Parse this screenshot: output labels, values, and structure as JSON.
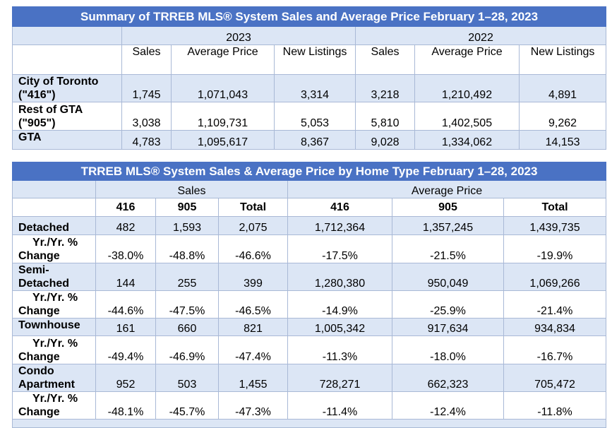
{
  "summary": {
    "title": "Summary of TRREB MLS® System Sales and Average Price February 1–28, 2023",
    "year_2023": "2023",
    "year_2022": "2022",
    "col_sales": "Sales",
    "col_avg_price": "Average Price",
    "col_new_listings": "New Listings",
    "rows": [
      {
        "label": "City of Toronto (\"416\")",
        "values": [
          "1,745",
          "1,071,043",
          "3,314",
          "3,218",
          "1,210,492",
          "4,891"
        ]
      },
      {
        "label": "Rest of GTA (\"905\")",
        "values": [
          "3,038",
          "1,109,731",
          "5,053",
          "5,810",
          "1,402,505",
          "9,262"
        ]
      },
      {
        "label": "GTA",
        "values": [
          "4,783",
          "1,095,617",
          "8,367",
          "9,028",
          "1,334,062",
          "14,153"
        ]
      }
    ]
  },
  "by_type": {
    "title": "TRREB MLS® System Sales & Average Price by Home Type February 1–28, 2023",
    "group_sales": "Sales",
    "group_avg_price": "Average Price",
    "sub_headers": [
      "416",
      "905",
      "Total",
      "416",
      "905",
      "Total"
    ],
    "yoy_label": "Yr./Yr. % Change",
    "rows": [
      {
        "type": "Detached",
        "values": [
          "482",
          "1,593",
          "2,075",
          "1,712,364",
          "1,357,245",
          "1,439,735"
        ],
        "yoy": [
          "-38.0%",
          "-48.8%",
          "-46.6%",
          "-17.5%",
          "-21.5%",
          "-19.9%"
        ]
      },
      {
        "type": "Semi-Detached",
        "values": [
          "144",
          "255",
          "399",
          "1,280,380",
          "950,049",
          "1,069,266"
        ],
        "yoy": [
          "-44.6%",
          "-47.5%",
          "-46.5%",
          "-14.9%",
          "-25.9%",
          "-21.4%"
        ]
      },
      {
        "type": "Townhouse",
        "values": [
          "161",
          "660",
          "821",
          "1,005,342",
          "917,634",
          "934,834"
        ],
        "yoy": [
          "-49.4%",
          "-46.9%",
          "-47.4%",
          "-11.3%",
          "-18.0%",
          "-16.7%"
        ]
      },
      {
        "type": "Condo Apartment",
        "values": [
          "952",
          "503",
          "1,455",
          "728,271",
          "662,323",
          "705,472"
        ],
        "yoy": [
          "-48.1%",
          "-45.7%",
          "-47.3%",
          "-11.4%",
          "-12.4%",
          "-11.8%"
        ]
      }
    ]
  },
  "colors": {
    "title_bg": "#4a72c4",
    "band_bg": "#dce6f5",
    "border": "#a9b9d6"
  }
}
